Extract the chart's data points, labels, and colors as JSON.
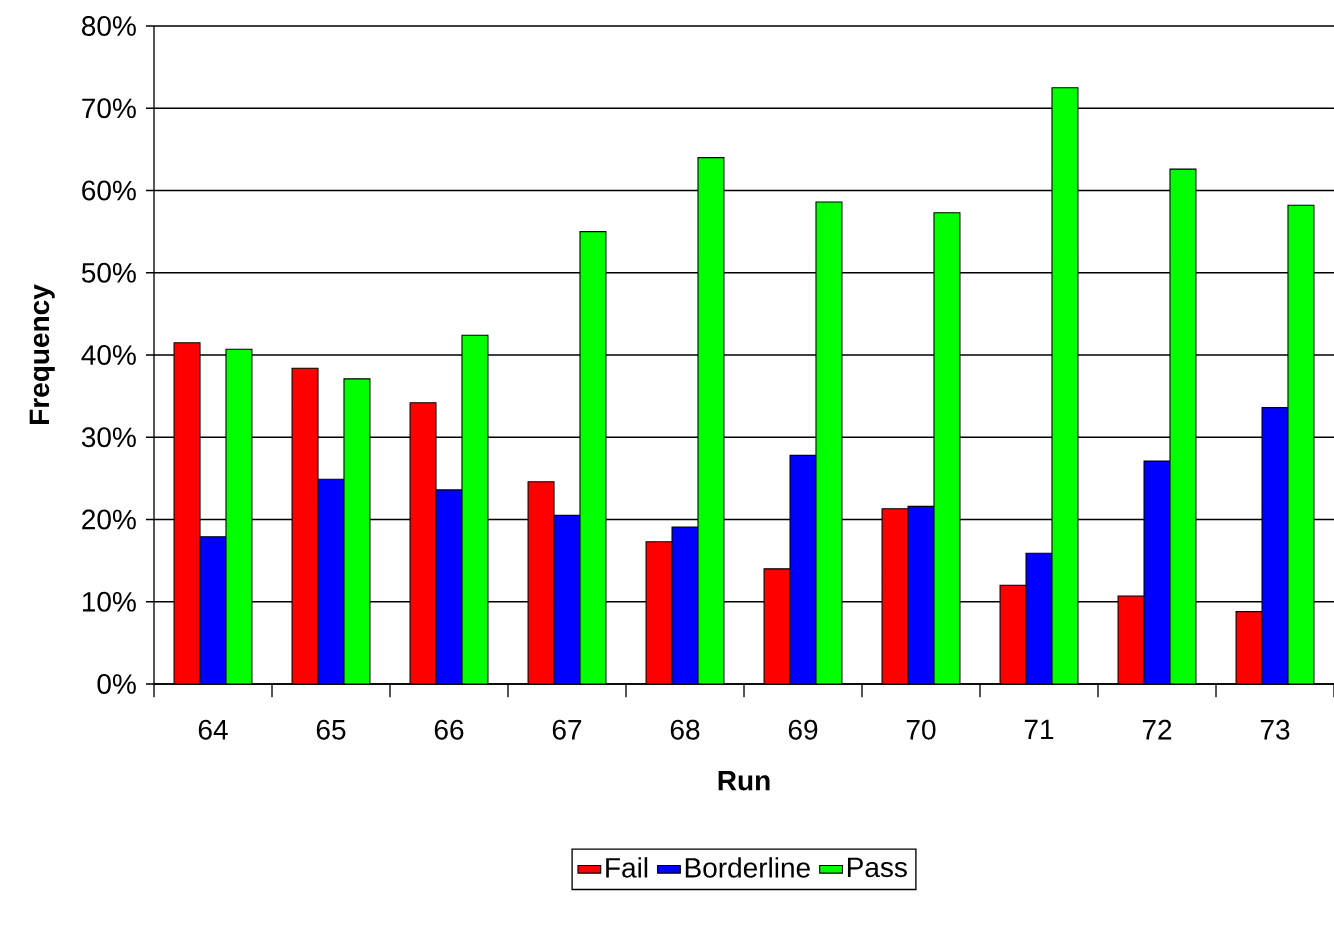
{
  "chart_data": {
    "type": "bar",
    "xlabel": "Run",
    "ylabel": "Frequency",
    "categories": [
      "64",
      "65",
      "66",
      "67",
      "68",
      "69",
      "70",
      "71",
      "72",
      "73"
    ],
    "series": [
      {
        "name": "Fail",
        "color": "#ff0000",
        "values": [
          41.5,
          38.4,
          34.2,
          24.6,
          17.3,
          14.0,
          21.3,
          12.0,
          10.7,
          8.8
        ]
      },
      {
        "name": "Borderline",
        "color": "#0000ff",
        "values": [
          17.9,
          24.9,
          23.6,
          20.5,
          19.1,
          27.8,
          21.6,
          15.9,
          27.1,
          33.6
        ]
      },
      {
        "name": "Pass",
        "color": "#00ff00",
        "values": [
          40.7,
          37.1,
          42.4,
          55.0,
          64.0,
          58.6,
          57.3,
          72.5,
          62.6,
          58.2
        ]
      }
    ],
    "ylim": [
      0,
      80
    ],
    "yticks": [
      {
        "value": 0,
        "label": "0%"
      },
      {
        "value": 10,
        "label": "10%"
      },
      {
        "value": 20,
        "label": "20%"
      },
      {
        "value": 30,
        "label": "30%"
      },
      {
        "value": 40,
        "label": "40%"
      },
      {
        "value": 50,
        "label": "50%"
      },
      {
        "value": 60,
        "label": "60%"
      },
      {
        "value": 70,
        "label": "70%"
      },
      {
        "value": 80,
        "label": "80%"
      }
    ],
    "grid": "y",
    "legend": "bottom"
  }
}
